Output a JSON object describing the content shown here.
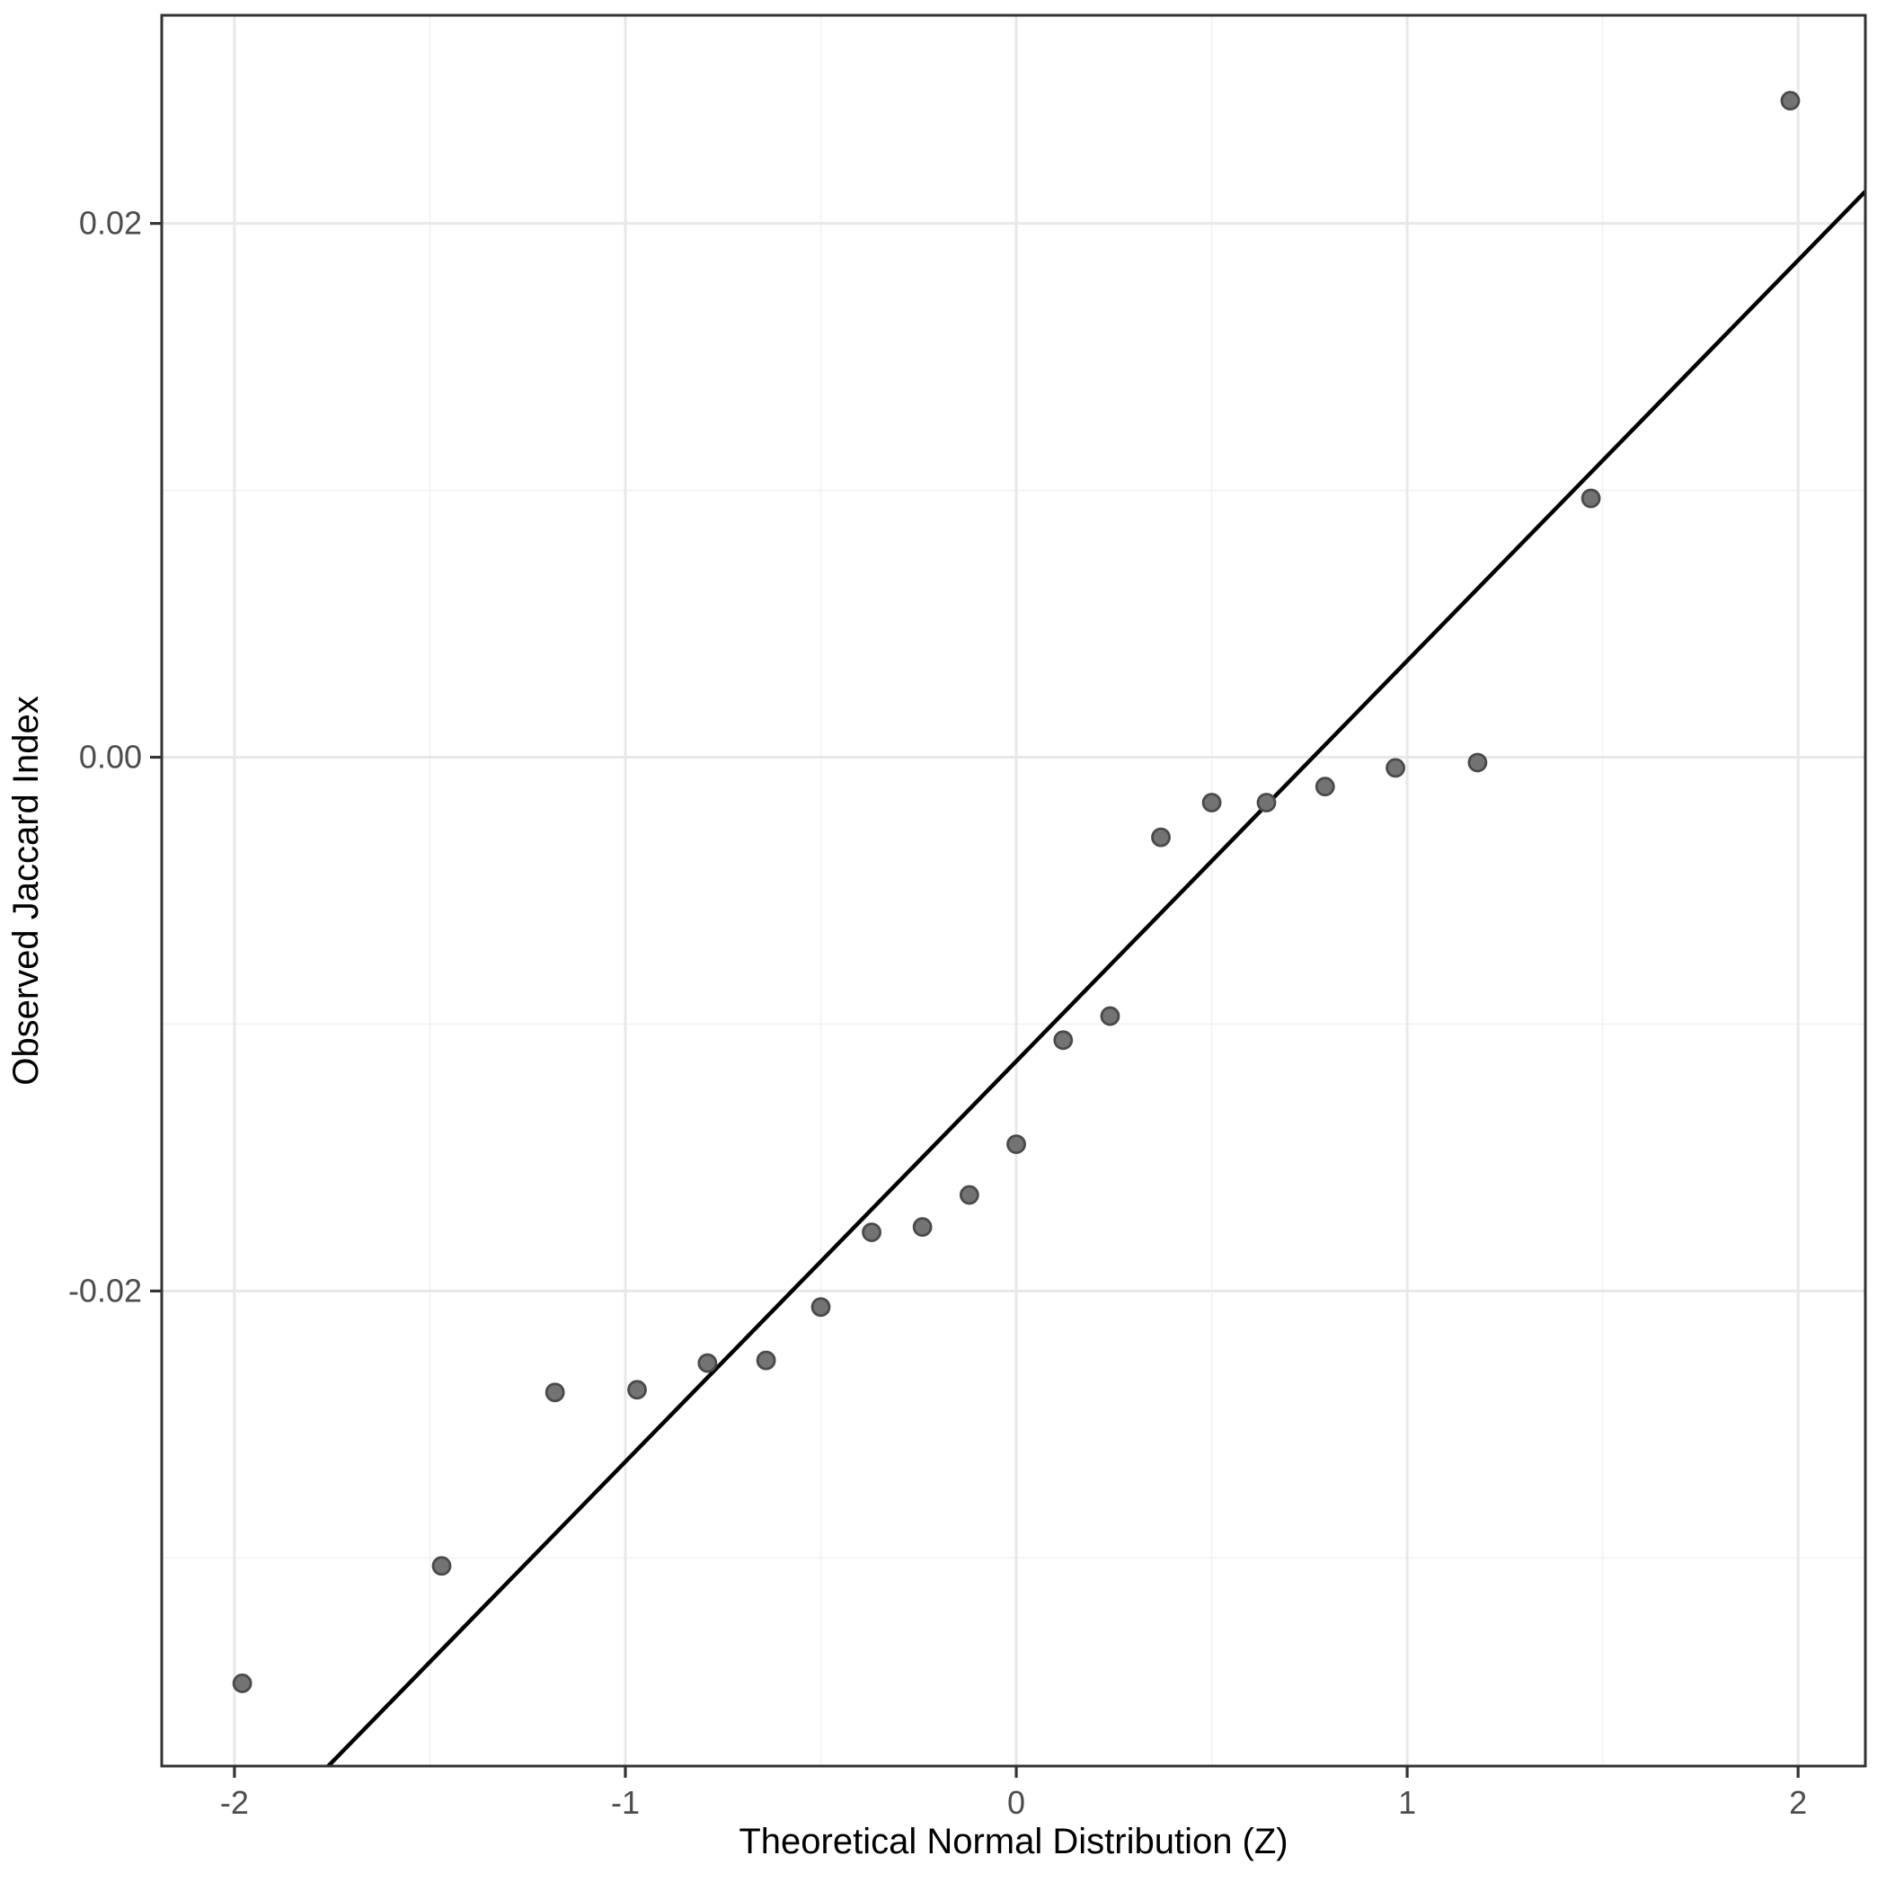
{
  "chart_data": {
    "type": "scatter",
    "title": "",
    "xlabel": "Theoretical Normal Distribution (Z)",
    "ylabel": "Observed Jaccard Index",
    "xlim": [
      -2.186,
      2.172
    ],
    "ylim": [
      -0.0378,
      0.0278
    ],
    "grid": true,
    "legend_position": "none",
    "x_major_ticks": [
      -2,
      -1,
      0,
      1,
      2
    ],
    "x_major_labels": [
      "-2",
      "-1",
      "0",
      "1",
      "2"
    ],
    "x_minor_ticks": [
      -1.5,
      -0.5,
      0.5,
      1.5
    ],
    "y_major_ticks": [
      0.02,
      0.0,
      -0.02
    ],
    "y_major_labels": [
      "0.02",
      "0.00",
      "-0.02"
    ],
    "y_minor_ticks": [
      0.01,
      -0.01,
      -0.03
    ],
    "series": [
      {
        "name": "sample-quantile-points",
        "type": "scatter",
        "x": [
          -1.98,
          -1.47,
          -1.18,
          -0.97,
          -0.79,
          -0.64,
          -0.5,
          -0.37,
          -0.24,
          -0.12,
          0.0,
          0.12,
          0.24,
          0.37,
          0.5,
          0.64,
          0.79,
          0.97,
          1.18,
          1.47,
          1.98
        ],
        "y": [
          -0.0347,
          -0.0303,
          -0.0238,
          -0.0237,
          -0.0227,
          -0.0226,
          -0.0206,
          -0.0178,
          -0.0176,
          -0.0164,
          -0.0145,
          -0.0106,
          -0.0097,
          -0.003,
          -0.0017,
          -0.0017,
          -0.0011,
          -0.0004,
          -0.0002,
          0.0097,
          0.0246
        ]
      },
      {
        "name": "qq-reference-line",
        "type": "line",
        "slope": 0.015,
        "intercept": -0.0114,
        "x": [
          -1.76,
          2.172
        ],
        "y": [
          -0.0378,
          0.0212
        ]
      }
    ],
    "point_style": {
      "radius": 9.5,
      "fill": "#737373",
      "stroke": "#4a4a4a",
      "stroke_width": 2.8
    },
    "line_style": {
      "color": "#000000",
      "width": 4.5
    },
    "colors": {
      "background": "#ffffff",
      "panel_background": "#ffffff",
      "panel_border": "#333333",
      "grid_major": "#e8e8e8",
      "grid_minor": "#f2f2f2",
      "tick_mark": "#333333",
      "tick_label": "#4d4d4d",
      "axis_title": "#000000"
    }
  }
}
